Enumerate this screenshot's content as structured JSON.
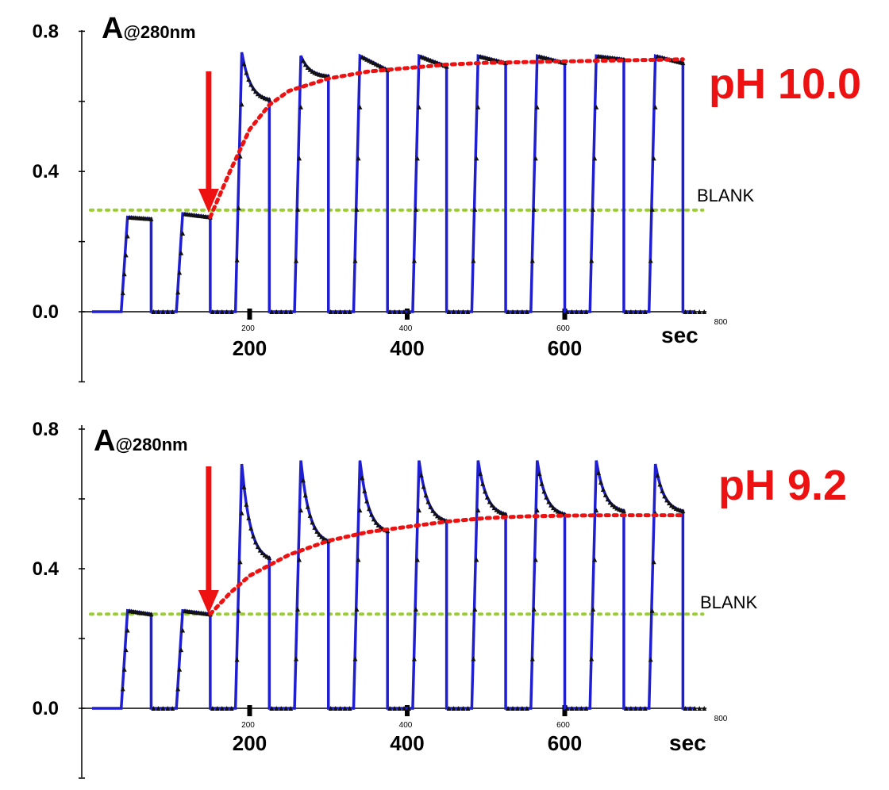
{
  "chart_data": [
    {
      "type": "line",
      "panel": "top",
      "ylabel_main": "A",
      "ylabel_sub": "@280nm",
      "xunit": "sec",
      "ytick_labels": [
        "0.8",
        "0.4",
        "0.0"
      ],
      "xtick_labels_big": [
        "200",
        "400",
        "600"
      ],
      "xtick_labels_small": [
        "200",
        "400",
        "600",
        "800"
      ],
      "annotation": "pH 10.0",
      "blank_label": "BLANK",
      "blank_value": 0.29,
      "xlim": [
        0,
        800
      ],
      "ylim": [
        -0.2,
        0.8
      ],
      "arrow_at_x": 150,
      "pulses": [
        {
          "start": 45,
          "end": 75,
          "peak": 0.27,
          "tail": 0.265
        },
        {
          "start": 115,
          "end": 150,
          "peak": 0.28,
          "tail": 0.27
        },
        {
          "start": 190,
          "end": 225,
          "peak": 0.74,
          "tail": 0.6
        },
        {
          "start": 265,
          "end": 300,
          "peak": 0.73,
          "tail": 0.67
        },
        {
          "start": 340,
          "end": 375,
          "peak": 0.73,
          "tail": 0.69
        },
        {
          "start": 415,
          "end": 450,
          "peak": 0.73,
          "tail": 0.7
        },
        {
          "start": 490,
          "end": 525,
          "peak": 0.73,
          "tail": 0.71
        },
        {
          "start": 565,
          "end": 600,
          "peak": 0.73,
          "tail": 0.71
        },
        {
          "start": 640,
          "end": 675,
          "peak": 0.73,
          "tail": 0.72
        },
        {
          "start": 715,
          "end": 750,
          "peak": 0.73,
          "tail": 0.71
        }
      ],
      "trend": {
        "x": [
          150,
          175,
          200,
          225,
          250,
          300,
          350,
          400,
          450,
          500,
          550,
          600,
          650,
          700,
          750
        ],
        "y": [
          0.27,
          0.4,
          0.52,
          0.59,
          0.63,
          0.665,
          0.685,
          0.695,
          0.705,
          0.71,
          0.712,
          0.714,
          0.716,
          0.718,
          0.72
        ]
      },
      "colors": {
        "trace": "#1f1fd1",
        "trend": "#ee1111",
        "blank": "#9acd32",
        "arrow": "#ee1111",
        "ph": "#ee1111"
      }
    },
    {
      "type": "line",
      "panel": "bottom",
      "ylabel_main": "A",
      "ylabel_sub": "@280nm",
      "xunit": "sec",
      "ytick_labels": [
        "0.8",
        "0.4",
        "0.0"
      ],
      "xtick_labels_big": [
        "200",
        "400",
        "600"
      ],
      "xtick_labels_small": [
        "200",
        "400",
        "600",
        "800"
      ],
      "annotation": "pH 9.2",
      "blank_label": "BLANK",
      "blank_value": 0.27,
      "xlim": [
        0,
        800
      ],
      "ylim": [
        -0.2,
        0.8
      ],
      "arrow_at_x": 150,
      "pulses": [
        {
          "start": 45,
          "end": 75,
          "peak": 0.28,
          "tail": 0.27
        },
        {
          "start": 115,
          "end": 150,
          "peak": 0.28,
          "tail": 0.27
        },
        {
          "start": 190,
          "end": 225,
          "peak": 0.7,
          "tail": 0.42
        },
        {
          "start": 265,
          "end": 300,
          "peak": 0.71,
          "tail": 0.47
        },
        {
          "start": 340,
          "end": 375,
          "peak": 0.71,
          "tail": 0.5
        },
        {
          "start": 415,
          "end": 450,
          "peak": 0.71,
          "tail": 0.53
        },
        {
          "start": 490,
          "end": 525,
          "peak": 0.71,
          "tail": 0.55
        },
        {
          "start": 565,
          "end": 600,
          "peak": 0.71,
          "tail": 0.55
        },
        {
          "start": 640,
          "end": 675,
          "peak": 0.71,
          "tail": 0.56
        },
        {
          "start": 715,
          "end": 750,
          "peak": 0.7,
          "tail": 0.56
        }
      ],
      "trend": {
        "x": [
          150,
          175,
          200,
          250,
          300,
          350,
          400,
          450,
          500,
          550,
          600,
          650,
          700,
          750
        ],
        "y": [
          0.27,
          0.33,
          0.38,
          0.44,
          0.48,
          0.505,
          0.52,
          0.535,
          0.545,
          0.55,
          0.552,
          0.553,
          0.553,
          0.553
        ]
      },
      "colors": {
        "trace": "#1f1fd1",
        "trend": "#ee1111",
        "blank": "#9acd32",
        "arrow": "#ee1111",
        "ph": "#ee1111"
      }
    }
  ]
}
